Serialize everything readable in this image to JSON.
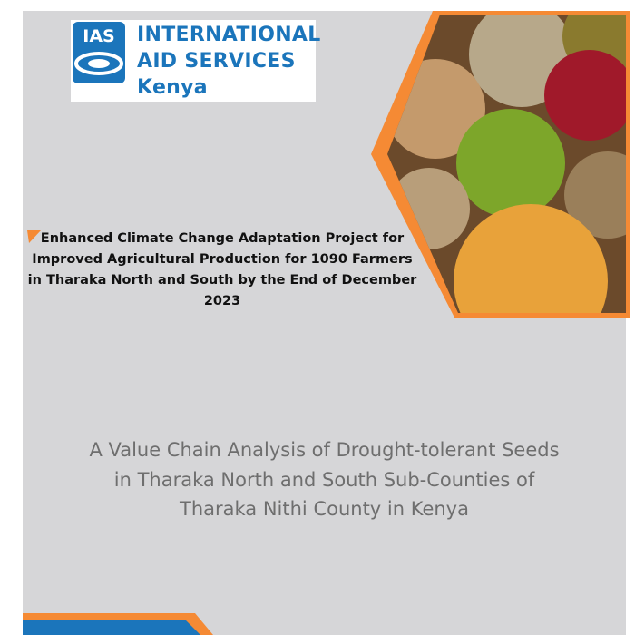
{
  "header": {
    "logo_abbr": "IAS",
    "logo_lines": [
      "INTERNATIONAL",
      "AID SERVICES",
      "Kenya"
    ]
  },
  "project_title": [
    "Enhanced Climate Change Adaptation Project for",
    "Improved Agricultural Production for 1090 Farmers",
    "in Tharaka North and South by the End of December",
    "2023"
  ],
  "report_title": [
    "A Value Chain Analysis of Drought-tolerant Seeds",
    "in Tharaka North and South Sub-Counties of",
    "Tharaka Nithi County in Kenya"
  ]
}
